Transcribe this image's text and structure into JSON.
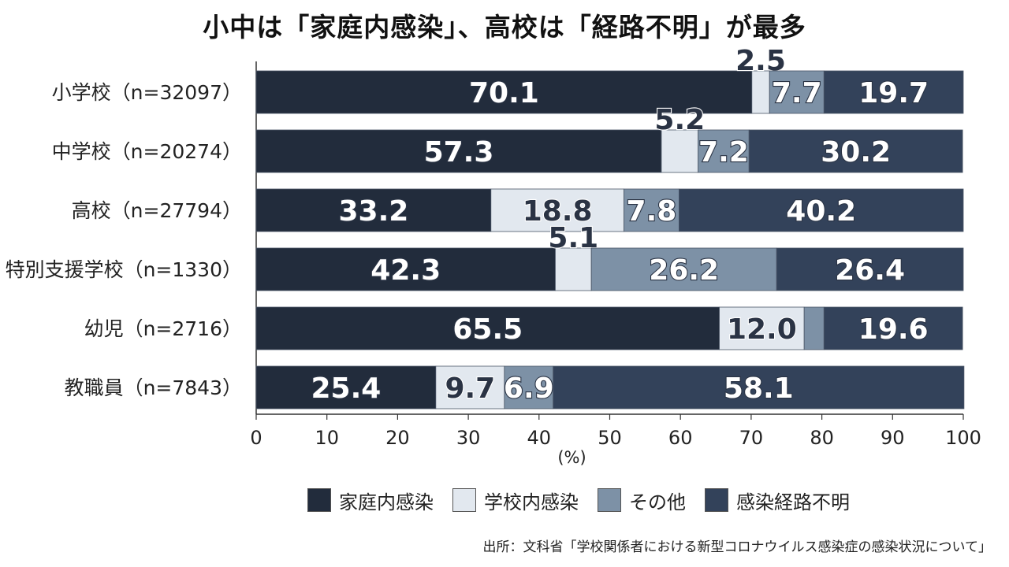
{
  "title": "小中は「家庭内感染」、高校は「経路不明」が最多",
  "source": "出所：文科省「学校関係者における新型コロナウイルス感染症の感染状況について」",
  "colors": {
    "家庭内感染": "#222c3c",
    "学校内感染": "#e2e8ef",
    "その他": "#7d91a6",
    "感染経路不明": "#33425a",
    "label_light": "#ffffff",
    "label_dark": "#2a3344"
  },
  "chart_data": {
    "type": "bar",
    "orientation": "horizontal",
    "stacked": true,
    "title": "小中は「家庭内感染」、高校は「経路不明」が最多",
    "xlabel": "(%)",
    "ylabel": "",
    "xlim": [
      0,
      100
    ],
    "xticks": [
      0,
      10,
      20,
      30,
      40,
      50,
      60,
      70,
      80,
      90,
      100
    ],
    "categories": [
      "小学校（n=32097）",
      "中学校（n=20274）",
      "高校（n=27794）",
      "特別支援学校（n=1330）",
      "幼児（n=2716）",
      "教職員（n=7843）"
    ],
    "series": [
      {
        "name": "家庭内感染",
        "values": [
          70.1,
          57.3,
          33.2,
          42.3,
          65.5,
          25.4
        ],
        "labels": [
          "70.1",
          "57.3",
          "33.2",
          "42.3",
          "65.5",
          "25.4"
        ]
      },
      {
        "name": "学校内感染",
        "values": [
          2.5,
          5.2,
          18.8,
          5.1,
          12.0,
          9.7
        ],
        "labels": [
          "2.5",
          "5.2",
          "18.8",
          "5.1",
          "12.0",
          "9.7"
        ]
      },
      {
        "name": "その他",
        "values": [
          7.7,
          7.2,
          7.8,
          26.2,
          2.8,
          6.9
        ],
        "labels": [
          "7.7",
          "7.2",
          "7.8",
          "26.2",
          "",
          "6.9"
        ]
      },
      {
        "name": "感染経路不明",
        "values": [
          19.7,
          30.2,
          40.2,
          26.4,
          19.6,
          58.1
        ],
        "labels": [
          "19.7",
          "30.2",
          "40.2",
          "26.4",
          "19.6",
          "58.1"
        ]
      }
    ],
    "legend_position": "bottom",
    "grid": false
  }
}
